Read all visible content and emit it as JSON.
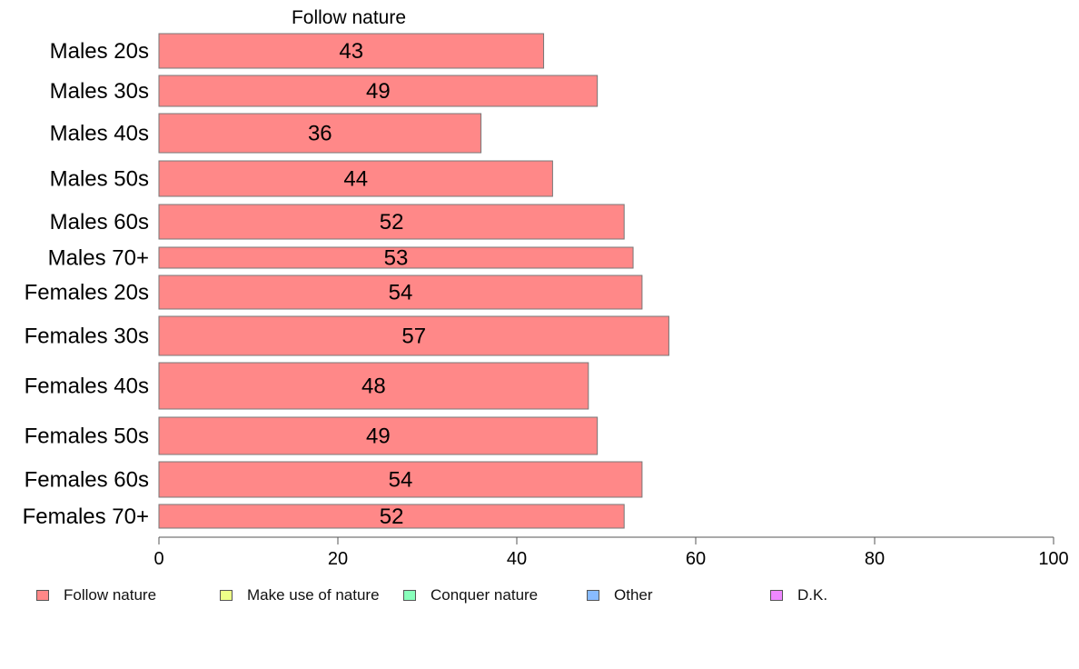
{
  "chart_data": {
    "type": "bar",
    "orientation": "horizontal",
    "title": "Follow nature",
    "categories": [
      "Males 20s",
      "Males 30s",
      "Males 40s",
      "Males 50s",
      "Males 60s",
      "Males 70+",
      "Females 20s",
      "Females 30s",
      "Females 40s",
      "Females 50s",
      "Females 60s",
      "Females 70+"
    ],
    "series": [
      {
        "name": "Follow nature",
        "values": [
          43,
          49,
          36,
          44,
          52,
          53,
          54,
          57,
          48,
          49,
          54,
          52
        ],
        "color": "#ff8888"
      }
    ],
    "xlim": [
      0,
      100
    ],
    "x_ticks": [
      "0",
      "20",
      "40",
      "60",
      "80",
      "100"
    ],
    "legend": [
      {
        "label": "Follow nature",
        "color": "#ff8888"
      },
      {
        "label": "Make use of nature",
        "color": "#eeff88"
      },
      {
        "label": "Conquer nature",
        "color": "#88ffbb"
      },
      {
        "label": "Other",
        "color": "#88bbff"
      },
      {
        "label": "D.K.",
        "color": "#ee88ff"
      }
    ],
    "legend_position": "bottom",
    "grid": false
  }
}
